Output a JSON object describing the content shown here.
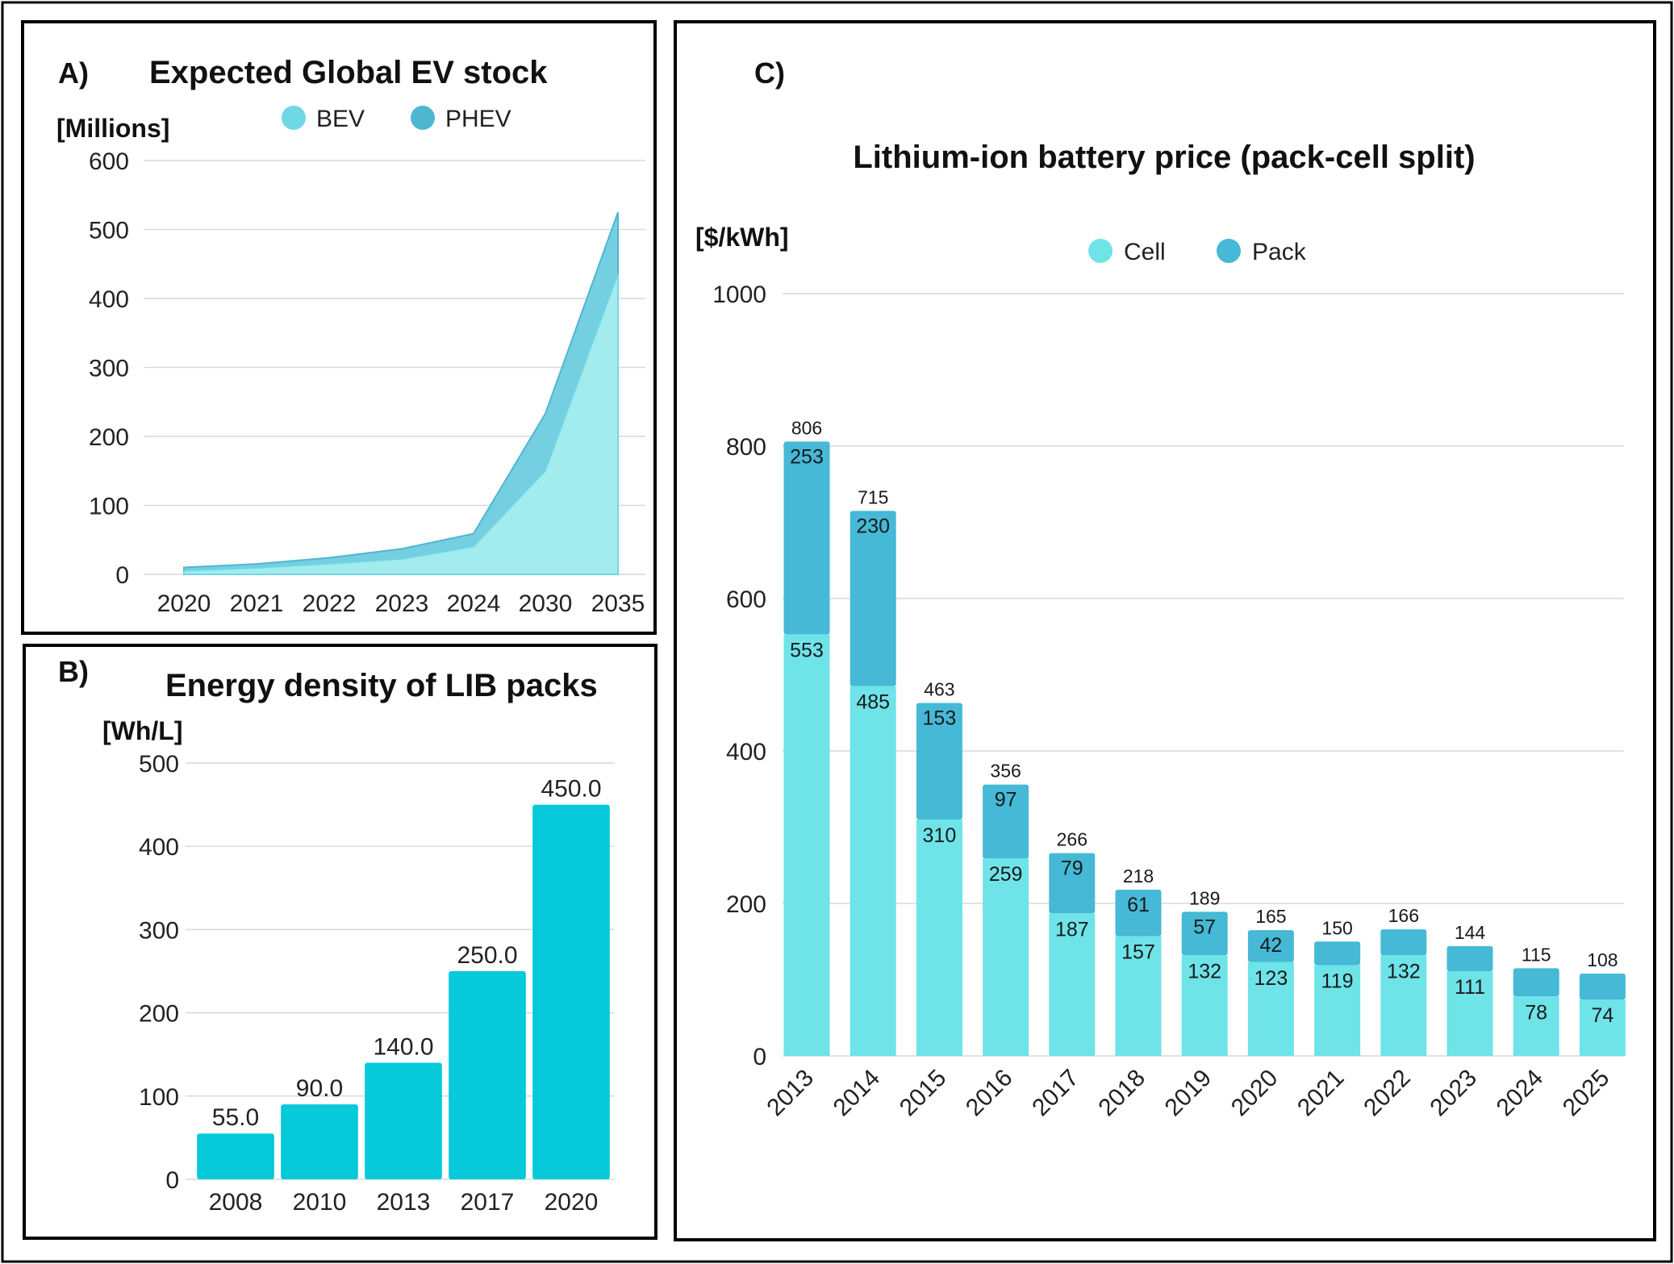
{
  "colors": {
    "bev": "#a2ecee",
    "phev": "#74cfe0",
    "phev_line": "#4fb6d2",
    "bev_line": "#6fd8e4",
    "density_bar": "#06c9da",
    "cell": "#6ee3e8",
    "pack": "#45b9d6",
    "grid": "#d9d9d9",
    "frame": "#000000"
  },
  "chart_data": [
    {
      "panel": "A)",
      "type": "area",
      "title": "Expected Global EV stock",
      "ylabel": "[Millions]",
      "xlabel": "",
      "categories": [
        "2020",
        "2021",
        "2022",
        "2023",
        "2024",
        "2030",
        "2035"
      ],
      "series": [
        {
          "name": "BEV",
          "values": [
            5,
            9,
            15,
            22,
            40,
            150,
            435
          ]
        },
        {
          "name": "PHEV",
          "values": [
            5,
            6,
            9,
            15,
            19,
            83,
            90
          ]
        }
      ],
      "stacked": true,
      "ylim": [
        0,
        600
      ],
      "yticks": [
        "0",
        "100",
        "200",
        "300",
        "400",
        "500",
        "600"
      ],
      "legend": "top",
      "grid": true
    },
    {
      "panel": "B)",
      "type": "bar",
      "title": "Energy density of LIB packs",
      "ylabel": "[Wh/L]",
      "xlabel": "",
      "categories": [
        "2008",
        "2010",
        "2013",
        "2017",
        "2020"
      ],
      "values": [
        55.0,
        90.0,
        140.0,
        250.0,
        450.0
      ],
      "value_labels": [
        "55.0",
        "90.0",
        "140.0",
        "250.0",
        "450.0"
      ],
      "ylim": [
        0,
        500
      ],
      "yticks": [
        "0",
        "100",
        "200",
        "300",
        "400",
        "500"
      ],
      "grid": true
    },
    {
      "panel": "C)",
      "type": "bar",
      "stacked": true,
      "title": "Lithium-ion battery price (pack-cell split)",
      "ylabel": "[$/kWh]",
      "xlabel": "",
      "categories": [
        "2013",
        "2014",
        "2015",
        "2016",
        "2017",
        "2018",
        "2019",
        "2020",
        "2021",
        "2022",
        "2023",
        "2024",
        "2025"
      ],
      "series": [
        {
          "name": "Cell",
          "values": [
            553,
            485,
            310,
            259,
            187,
            157,
            132,
            123,
            119,
            132,
            111,
            78,
            74
          ]
        },
        {
          "name": "Pack",
          "values": [
            253,
            230,
            153,
            97,
            79,
            61,
            57,
            42,
            31,
            34,
            33,
            37,
            34
          ]
        }
      ],
      "cell_labels": [
        "553",
        "485",
        "310",
        "259",
        "187",
        "157",
        "132",
        "123",
        "119",
        "132",
        "111",
        "78",
        "74"
      ],
      "pack_labels": [
        "253",
        "230",
        "153",
        "97",
        "79",
        "61",
        "57",
        "42",
        "",
        "",
        "",
        "",
        ""
      ],
      "totals": [
        806,
        715,
        463,
        356,
        266,
        218,
        189,
        165,
        150,
        166,
        144,
        115,
        108
      ],
      "total_labels": [
        "806",
        "715",
        "463",
        "356",
        "266",
        "218",
        "189",
        "165",
        "150",
        "166",
        "144",
        "115",
        "108"
      ],
      "ylim": [
        0,
        1000
      ],
      "yticks": [
        "0",
        "200",
        "400",
        "600",
        "800",
        "1000"
      ],
      "legend": "top",
      "grid": true
    }
  ]
}
